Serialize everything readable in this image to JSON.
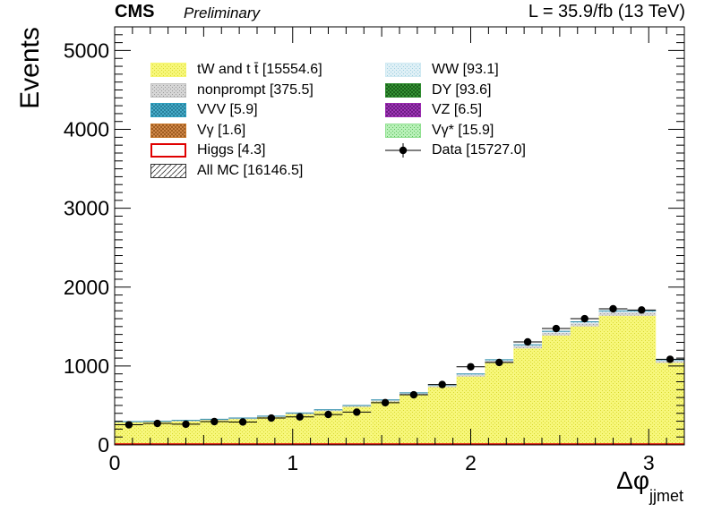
{
  "header": {
    "experiment": "CMS",
    "status": "Preliminary",
    "lumi": "L = 35.9/fb (13 TeV)"
  },
  "chart_data": {
    "type": "bar",
    "subtype": "stacked-histogram",
    "xlabel_main": "Δφ",
    "xlabel_sub": "jjmet",
    "ylabel": "Events",
    "xlim": [
      0,
      3.2
    ],
    "ylim": [
      0,
      5300
    ],
    "bin_width": 0.16,
    "bin_edges": [
      0,
      0.16,
      0.32,
      0.48,
      0.64,
      0.8,
      0.96,
      1.12,
      1.28,
      1.44,
      1.6,
      1.76,
      1.92,
      2.08,
      2.24,
      2.4,
      2.56,
      2.72,
      2.88,
      3.04,
      3.2
    ],
    "x_ticks": [
      "0",
      "1",
      "2",
      "3"
    ],
    "y_ticks": [
      "0",
      "1000",
      "2000",
      "3000",
      "4000",
      "5000"
    ],
    "mc_total": [
      295,
      300,
      310,
      325,
      340,
      365,
      405,
      445,
      500,
      570,
      660,
      760,
      900,
      1080,
      1270,
      1440,
      1560,
      1700,
      1700,
      1080
    ],
    "data": [
      255,
      272,
      262,
      295,
      290,
      340,
      355,
      385,
      415,
      535,
      635,
      765,
      990,
      1045,
      1305,
      1475,
      1600,
      1725,
      1710,
      1085
    ],
    "data_err": [
      16,
      16,
      16,
      17,
      17,
      18,
      19,
      20,
      20,
      23,
      25,
      28,
      31,
      32,
      36,
      38,
      40,
      42,
      41,
      33
    ],
    "legend": [
      {
        "label": "tW and t t̄ [15554.6]",
        "style": "fill",
        "color": "#f5f56e",
        "hatch": "dots"
      },
      {
        "label": "WW [93.1]",
        "style": "fill",
        "color": "#cfe9f2",
        "hatch": "dots"
      },
      {
        "label": "nonprompt [375.5]",
        "style": "fill",
        "color": "#c0c0c0",
        "hatch": "dots"
      },
      {
        "label": "DY [93.6]",
        "style": "fill",
        "color": "#2e8b2e",
        "hatch": "cross"
      },
      {
        "label": "VVV [5.9]",
        "style": "fill",
        "color": "#2d9fbf",
        "hatch": "cross"
      },
      {
        "label": "VZ [6.5]",
        "style": "fill",
        "color": "#9a2ab0",
        "hatch": "cross"
      },
      {
        "label": "Vγ [1.6]",
        "style": "fill",
        "color": "#c8782a",
        "hatch": "cross"
      },
      {
        "label": "Vγ* [15.9]",
        "style": "fill",
        "color": "#90e090",
        "hatch": "dots"
      },
      {
        "label": "Higgs [4.3]",
        "style": "line",
        "color": "#e00000"
      },
      {
        "label": "Data [15727.0]",
        "style": "marker",
        "color": "#000000"
      },
      {
        "label": "All MC [16146.5]",
        "style": "hatch",
        "color": "#555555"
      }
    ]
  }
}
